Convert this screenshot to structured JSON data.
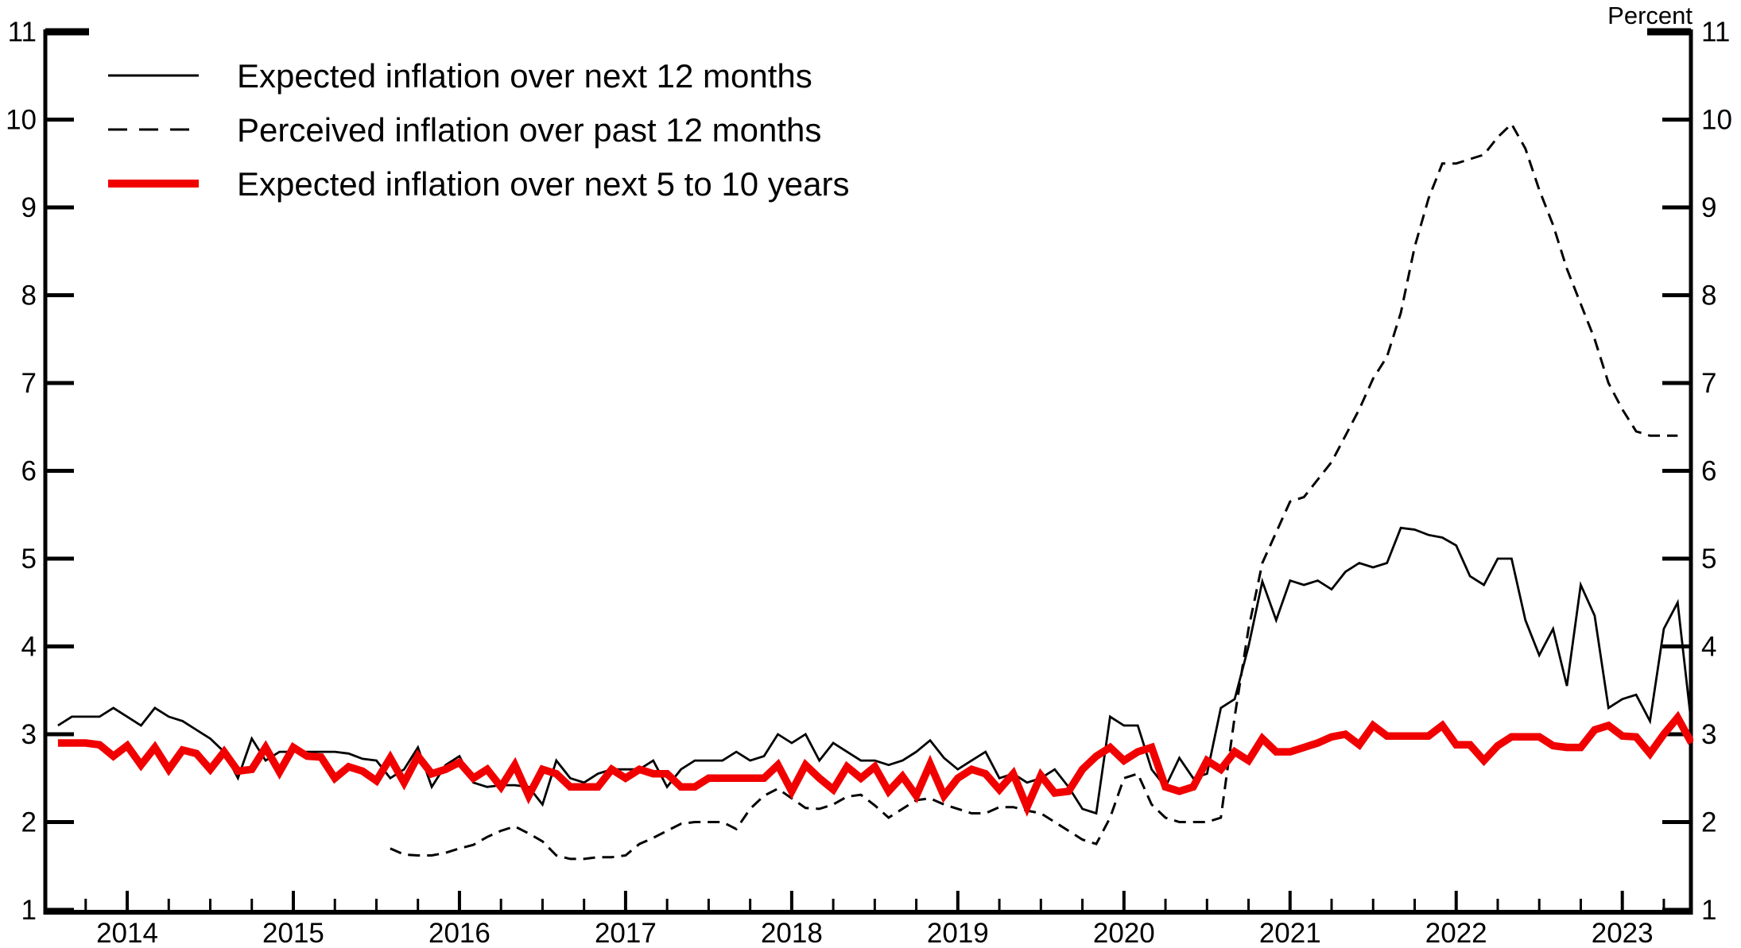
{
  "page": {
    "background": "#ffffff",
    "axis_color": "#000000"
  },
  "chart_data": {
    "type": "line",
    "title": "",
    "unit_label": "Percent",
    "xlabel": "",
    "ylabel": "Percent",
    "grid": false,
    "legend_position": "top-left",
    "xlim": [
      2013.507,
      2023.413
    ],
    "ylim": [
      1,
      11
    ],
    "yticks": [
      1,
      2,
      3,
      4,
      5,
      6,
      7,
      8,
      9,
      10,
      11
    ],
    "xticks": [
      {
        "t": 2014,
        "label": "2014"
      },
      {
        "t": 2015,
        "label": "2015"
      },
      {
        "t": 2016,
        "label": "2016"
      },
      {
        "t": 2017,
        "label": "2017"
      },
      {
        "t": 2018,
        "label": "2018"
      },
      {
        "t": 2019,
        "label": "2019"
      },
      {
        "t": 2020,
        "label": "2020"
      },
      {
        "t": 2021,
        "label": "2021"
      },
      {
        "t": 2022,
        "label": "2022"
      },
      {
        "t": 2023,
        "label": "2023"
      }
    ],
    "minor_xtick_step": 0.25,
    "series": [
      {
        "id": "expected-12m",
        "name": "Expected inflation over next 12 months",
        "color": "#000000",
        "style": "solid",
        "start": 2013.5833,
        "points_per_year": 12,
        "values": [
          3.1,
          3.2,
          3.2,
          3.2,
          3.3,
          3.2,
          3.1,
          3.3,
          3.2,
          3.15,
          3.05,
          2.95,
          2.8,
          2.5,
          2.95,
          2.7,
          2.8,
          2.8,
          2.8,
          2.8,
          2.8,
          2.78,
          2.72,
          2.7,
          2.5,
          2.6,
          2.85,
          2.4,
          2.65,
          2.75,
          2.45,
          2.4,
          2.42,
          2.42,
          2.4,
          2.2,
          2.7,
          2.5,
          2.45,
          2.55,
          2.6,
          2.6,
          2.6,
          2.7,
          2.4,
          2.6,
          2.7,
          2.7,
          2.7,
          2.8,
          2.7,
          2.75,
          3.0,
          2.9,
          3.0,
          2.7,
          2.9,
          2.8,
          2.7,
          2.7,
          2.65,
          2.7,
          2.8,
          2.93,
          2.73,
          2.6,
          2.7,
          2.8,
          2.5,
          2.55,
          2.45,
          2.5,
          2.6,
          2.4,
          2.15,
          2.1,
          3.2,
          3.1,
          3.1,
          2.6,
          2.4,
          2.73,
          2.5,
          2.55,
          3.3,
          3.4,
          4.0,
          4.74,
          4.3,
          4.75,
          4.7,
          4.75,
          4.65,
          4.85,
          4.95,
          4.9,
          4.95,
          5.35,
          5.33,
          5.27,
          5.24,
          5.15,
          4.8,
          4.7,
          5.0,
          5.0,
          4.3,
          3.9,
          4.2,
          3.55,
          4.7,
          4.35,
          3.3,
          3.4,
          3.45,
          3.15,
          4.2,
          4.5,
          3.1
        ]
      },
      {
        "id": "perceived-past-12m",
        "name": "Perceived inflation over past 12 months",
        "color": "#000000",
        "style": "dashed",
        "start": 2015.5833,
        "points_per_year": 12,
        "values": [
          1.7,
          1.63,
          1.62,
          1.62,
          1.65,
          1.7,
          1.74,
          1.83,
          1.9,
          1.95,
          1.87,
          1.78,
          1.62,
          1.58,
          1.58,
          1.6,
          1.6,
          1.62,
          1.75,
          1.82,
          1.9,
          1.98,
          2.0,
          2.0,
          2.0,
          1.92,
          2.15,
          2.3,
          2.38,
          2.27,
          2.16,
          2.15,
          2.2,
          2.29,
          2.31,
          2.19,
          2.05,
          2.15,
          2.25,
          2.27,
          2.2,
          2.15,
          2.1,
          2.1,
          2.17,
          2.17,
          2.13,
          2.1,
          2.0,
          1.9,
          1.8,
          1.75,
          2.05,
          2.5,
          2.55,
          2.2,
          2.05,
          2.0,
          2.0,
          2.0,
          2.05,
          3.2,
          4.2,
          4.95,
          5.3,
          5.65,
          5.7,
          5.9,
          6.1,
          6.4,
          6.7,
          7.05,
          7.3,
          7.8,
          8.55,
          9.1,
          9.5,
          9.5,
          9.55,
          9.6,
          9.8,
          9.95,
          9.67,
          9.2,
          8.8,
          8.3,
          7.9,
          7.5,
          7.0,
          6.7,
          6.45,
          6.4,
          6.4,
          6.4
        ]
      },
      {
        "id": "expected-5-10y",
        "name": "Expected inflation over next 5 to 10 years",
        "color": "#f10000",
        "style": "thick-solid",
        "start": 2013.5833,
        "points_per_year": 12,
        "values": [
          2.9,
          2.9,
          2.9,
          2.88,
          2.75,
          2.87,
          2.65,
          2.85,
          2.6,
          2.82,
          2.78,
          2.6,
          2.8,
          2.58,
          2.6,
          2.85,
          2.57,
          2.85,
          2.75,
          2.74,
          2.5,
          2.63,
          2.58,
          2.47,
          2.73,
          2.45,
          2.75,
          2.55,
          2.6,
          2.68,
          2.5,
          2.6,
          2.4,
          2.65,
          2.3,
          2.6,
          2.55,
          2.4,
          2.4,
          2.4,
          2.6,
          2.5,
          2.6,
          2.55,
          2.55,
          2.4,
          2.4,
          2.5,
          2.5,
          2.5,
          2.5,
          2.5,
          2.65,
          2.35,
          2.65,
          2.5,
          2.37,
          2.63,
          2.5,
          2.63,
          2.35,
          2.52,
          2.3,
          2.66,
          2.3,
          2.5,
          2.6,
          2.55,
          2.37,
          2.55,
          2.17,
          2.53,
          2.33,
          2.35,
          2.6,
          2.75,
          2.85,
          2.7,
          2.8,
          2.85,
          2.4,
          2.35,
          2.4,
          2.7,
          2.6,
          2.8,
          2.7,
          2.95,
          2.8,
          2.8,
          2.85,
          2.9,
          2.97,
          3.0,
          2.88,
          3.1,
          2.98,
          2.98,
          2.98,
          2.98,
          3.1,
          2.88,
          2.88,
          2.7,
          2.87,
          2.97,
          2.97,
          2.97,
          2.87,
          2.85,
          2.85,
          3.05,
          3.1,
          2.98,
          2.97,
          2.78,
          3.0,
          3.19,
          2.9
        ]
      }
    ]
  }
}
